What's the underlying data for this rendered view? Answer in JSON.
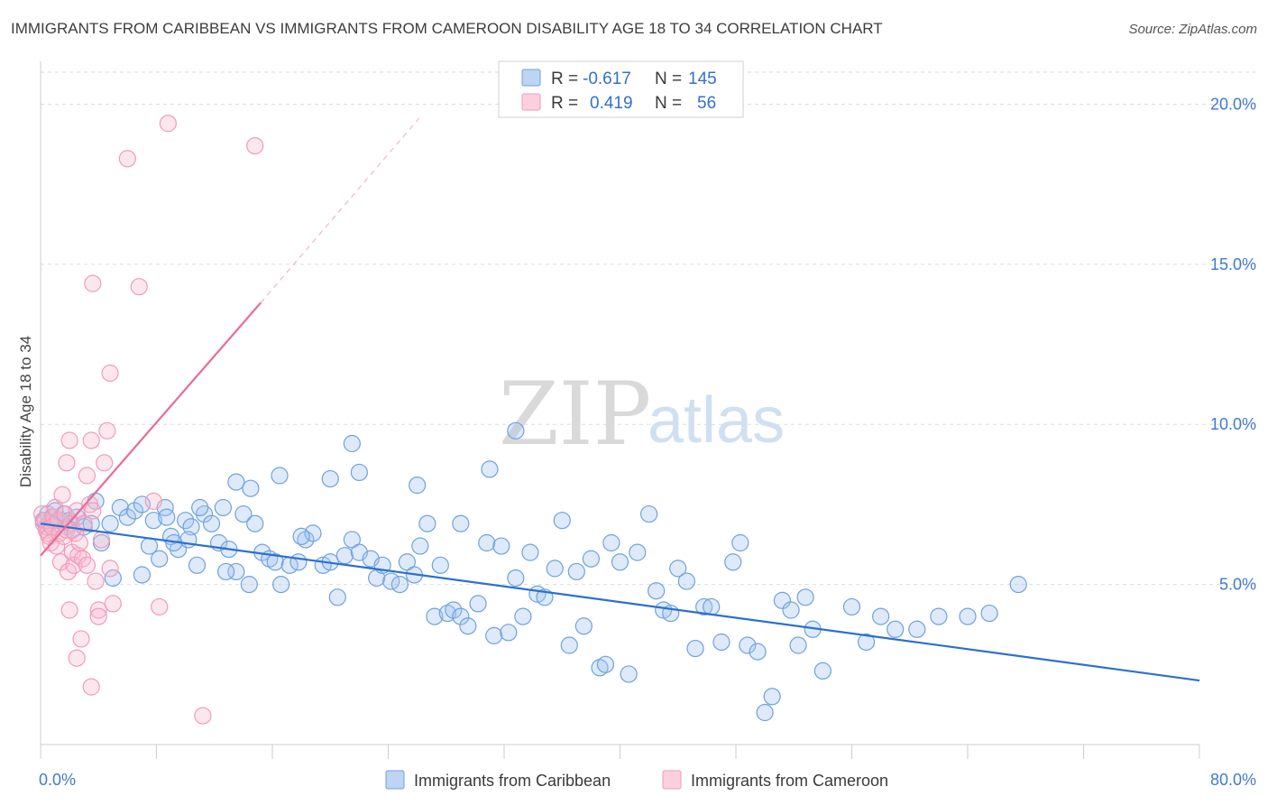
{
  "title": "IMMIGRANTS FROM CARIBBEAN VS IMMIGRANTS FROM CAMEROON DISABILITY AGE 18 TO 34 CORRELATION CHART",
  "source": "Source: ZipAtlas.com",
  "watermark": {
    "zip": "ZIP",
    "atlas": "atlas"
  },
  "chart_data": {
    "type": "scatter",
    "xlabel": "",
    "ylabel": "Disability Age 18 to 34",
    "xlim": [
      0,
      80
    ],
    "ylim": [
      0,
      21
    ],
    "x_tick_labels": [
      "0.0%",
      "80.0%"
    ],
    "y_ticks": [
      5,
      10,
      15,
      20
    ],
    "y_tick_labels": [
      "5.0%",
      "10.0%",
      "15.0%",
      "20.0%"
    ],
    "grid": true,
    "legend_placement": "top-center",
    "legend": [
      {
        "r_label": "R =",
        "r_value": "-0.617",
        "n_label": "N =",
        "n_value": "145"
      },
      {
        "r_label": "R =",
        "r_value": "0.419",
        "n_label": "N =",
        "n_value": "56"
      }
    ],
    "series": [
      {
        "name": "Immigrants from Caribbean",
        "color": "#6fa1e0",
        "trend": {
          "x0": 0,
          "y0": 6.9,
          "x1": 80,
          "y1": 2.0,
          "color": "#2b6fd1"
        },
        "points": [
          [
            0.2,
            7.0
          ],
          [
            0.4,
            6.8
          ],
          [
            0.5,
            7.2
          ],
          [
            0.6,
            6.9
          ],
          [
            0.8,
            7.1
          ],
          [
            1.0,
            7.3
          ],
          [
            1.2,
            6.9
          ],
          [
            1.4,
            7.0
          ],
          [
            1.6,
            7.2
          ],
          [
            1.8,
            6.8
          ],
          [
            2.0,
            7.0
          ],
          [
            2.2,
            6.7
          ],
          [
            2.5,
            7.1
          ],
          [
            3.0,
            6.8
          ],
          [
            3.5,
            6.9
          ],
          [
            3.8,
            7.6
          ],
          [
            4.2,
            6.3
          ],
          [
            4.8,
            6.9
          ],
          [
            5.5,
            7.4
          ],
          [
            6.0,
            7.1
          ],
          [
            6.5,
            7.3
          ],
          [
            7.0,
            7.5
          ],
          [
            7.5,
            6.2
          ],
          [
            7.8,
            7.0
          ],
          [
            8.2,
            5.8
          ],
          [
            8.6,
            7.4
          ],
          [
            9.0,
            6.5
          ],
          [
            9.5,
            6.1
          ],
          [
            10.0,
            7.0
          ],
          [
            10.4,
            6.8
          ],
          [
            10.8,
            5.6
          ],
          [
            11.3,
            7.2
          ],
          [
            11.8,
            6.9
          ],
          [
            12.3,
            6.3
          ],
          [
            12.6,
            7.4
          ],
          [
            13.0,
            6.1
          ],
          [
            13.5,
            5.4
          ],
          [
            14.0,
            7.2
          ],
          [
            14.4,
            5.0
          ],
          [
            14.8,
            6.9
          ],
          [
            15.3,
            6.0
          ],
          [
            15.8,
            5.8
          ],
          [
            16.2,
            5.7
          ],
          [
            16.6,
            5.0
          ],
          [
            17.2,
            5.6
          ],
          [
            17.8,
            5.7
          ],
          [
            18.3,
            6.4
          ],
          [
            18.8,
            6.6
          ],
          [
            19.5,
            5.6
          ],
          [
            20.0,
            5.7
          ],
          [
            20.5,
            4.6
          ],
          [
            21.0,
            5.9
          ],
          [
            21.5,
            6.4
          ],
          [
            22.0,
            6.0
          ],
          [
            22.8,
            5.8
          ],
          [
            23.2,
            5.2
          ],
          [
            23.6,
            5.6
          ],
          [
            24.2,
            5.1
          ],
          [
            24.8,
            5.0
          ],
          [
            25.3,
            5.7
          ],
          [
            25.8,
            5.3
          ],
          [
            26.2,
            6.2
          ],
          [
            26.7,
            6.9
          ],
          [
            27.2,
            4.0
          ],
          [
            27.6,
            5.6
          ],
          [
            28.1,
            4.1
          ],
          [
            28.5,
            4.2
          ],
          [
            29.0,
            4.0
          ],
          [
            29.5,
            3.7
          ],
          [
            30.2,
            4.4
          ],
          [
            30.8,
            6.3
          ],
          [
            31.3,
            3.4
          ],
          [
            31.8,
            6.2
          ],
          [
            32.3,
            3.5
          ],
          [
            32.8,
            5.2
          ],
          [
            33.3,
            4.0
          ],
          [
            33.8,
            6.0
          ],
          [
            34.3,
            4.7
          ],
          [
            34.8,
            4.6
          ],
          [
            35.5,
            5.5
          ],
          [
            36.0,
            7.0
          ],
          [
            36.5,
            3.1
          ],
          [
            37.0,
            5.4
          ],
          [
            37.5,
            3.7
          ],
          [
            38.0,
            5.8
          ],
          [
            38.6,
            2.4
          ],
          [
            39.0,
            2.5
          ],
          [
            39.4,
            6.3
          ],
          [
            40.0,
            5.7
          ],
          [
            40.6,
            2.2
          ],
          [
            41.2,
            6.0
          ],
          [
            42.0,
            7.2
          ],
          [
            42.5,
            4.8
          ],
          [
            43.0,
            4.2
          ],
          [
            43.5,
            4.1
          ],
          [
            44.0,
            5.5
          ],
          [
            44.6,
            5.1
          ],
          [
            45.2,
            3.0
          ],
          [
            45.8,
            4.3
          ],
          [
            46.3,
            4.3
          ],
          [
            47.0,
            3.2
          ],
          [
            47.8,
            5.7
          ],
          [
            48.3,
            6.3
          ],
          [
            48.8,
            3.1
          ],
          [
            49.5,
            2.9
          ],
          [
            50.0,
            1.0
          ],
          [
            50.5,
            1.5
          ],
          [
            51.2,
            4.5
          ],
          [
            51.8,
            4.2
          ],
          [
            52.3,
            3.1
          ],
          [
            52.8,
            4.6
          ],
          [
            53.3,
            3.6
          ],
          [
            54.0,
            2.3
          ],
          [
            56.0,
            4.3
          ],
          [
            57.0,
            3.2
          ],
          [
            58.0,
            4.0
          ],
          [
            59.0,
            3.6
          ],
          [
            60.5,
            3.6
          ],
          [
            62.0,
            4.0
          ],
          [
            64.0,
            4.0
          ],
          [
            65.5,
            4.1
          ],
          [
            67.5,
            5.0
          ],
          [
            31.0,
            8.6
          ],
          [
            29.0,
            6.9
          ],
          [
            26.0,
            8.1
          ],
          [
            21.5,
            9.4
          ],
          [
            20.0,
            8.3
          ],
          [
            16.5,
            8.4
          ],
          [
            13.5,
            8.2
          ],
          [
            14.5,
            8.0
          ],
          [
            11.0,
            7.4
          ],
          [
            10.2,
            6.4
          ],
          [
            9.2,
            6.3
          ],
          [
            8.7,
            7.1
          ],
          [
            32.8,
            9.8
          ],
          [
            22.0,
            8.5
          ],
          [
            12.8,
            5.4
          ],
          [
            18.0,
            6.5
          ],
          [
            7.0,
            5.3
          ],
          [
            5.0,
            5.2
          ]
        ]
      },
      {
        "name": "Immigrants from Cameroon",
        "color": "#f29ab8",
        "trend": {
          "x0": 0,
          "y0": 5.9,
          "x1": 15.2,
          "y1": 13.8,
          "color": "#e86b93"
        },
        "trend_extension": {
          "x0": 15.2,
          "y0": 13.8,
          "x1": 26.2,
          "y1": 19.6
        },
        "points": [
          [
            0.1,
            7.2
          ],
          [
            0.2,
            6.9
          ],
          [
            0.3,
            7.0
          ],
          [
            0.4,
            6.7
          ],
          [
            0.5,
            6.6
          ],
          [
            0.6,
            6.5
          ],
          [
            0.7,
            6.3
          ],
          [
            0.8,
            6.8
          ],
          [
            0.9,
            7.1
          ],
          [
            1.0,
            7.4
          ],
          [
            1.1,
            6.2
          ],
          [
            1.2,
            7.0
          ],
          [
            1.3,
            6.6
          ],
          [
            1.4,
            5.7
          ],
          [
            1.5,
            7.8
          ],
          [
            1.6,
            6.5
          ],
          [
            1.7,
            7.2
          ],
          [
            1.8,
            6.7
          ],
          [
            1.9,
            5.4
          ],
          [
            2.0,
            4.2
          ],
          [
            2.1,
            6.9
          ],
          [
            2.2,
            6.0
          ],
          [
            2.3,
            5.6
          ],
          [
            2.4,
            6.6
          ],
          [
            2.5,
            7.3
          ],
          [
            2.6,
            5.9
          ],
          [
            2.7,
            6.3
          ],
          [
            2.8,
            3.3
          ],
          [
            2.9,
            5.8
          ],
          [
            3.0,
            6.9
          ],
          [
            3.2,
            5.6
          ],
          [
            3.4,
            7.5
          ],
          [
            3.6,
            7.3
          ],
          [
            3.8,
            5.1
          ],
          [
            4.0,
            4.2
          ],
          [
            4.2,
            6.4
          ],
          [
            4.4,
            8.8
          ],
          [
            4.6,
            9.8
          ],
          [
            4.8,
            5.5
          ],
          [
            5.0,
            4.4
          ],
          [
            1.8,
            8.8
          ],
          [
            2.0,
            9.5
          ],
          [
            3.5,
            9.5
          ],
          [
            4.8,
            11.6
          ],
          [
            3.6,
            14.4
          ],
          [
            6.8,
            14.3
          ],
          [
            6.0,
            18.3
          ],
          [
            8.8,
            19.4
          ],
          [
            14.8,
            18.7
          ],
          [
            8.2,
            4.3
          ],
          [
            11.2,
            0.9
          ],
          [
            3.5,
            1.8
          ],
          [
            2.5,
            2.7
          ],
          [
            7.8,
            7.6
          ],
          [
            4.0,
            4.0
          ],
          [
            3.2,
            8.4
          ]
        ]
      }
    ]
  },
  "bottom_legend": [
    {
      "label": "Immigrants from Caribbean"
    },
    {
      "label": "Immigrants from Cameroon"
    }
  ]
}
